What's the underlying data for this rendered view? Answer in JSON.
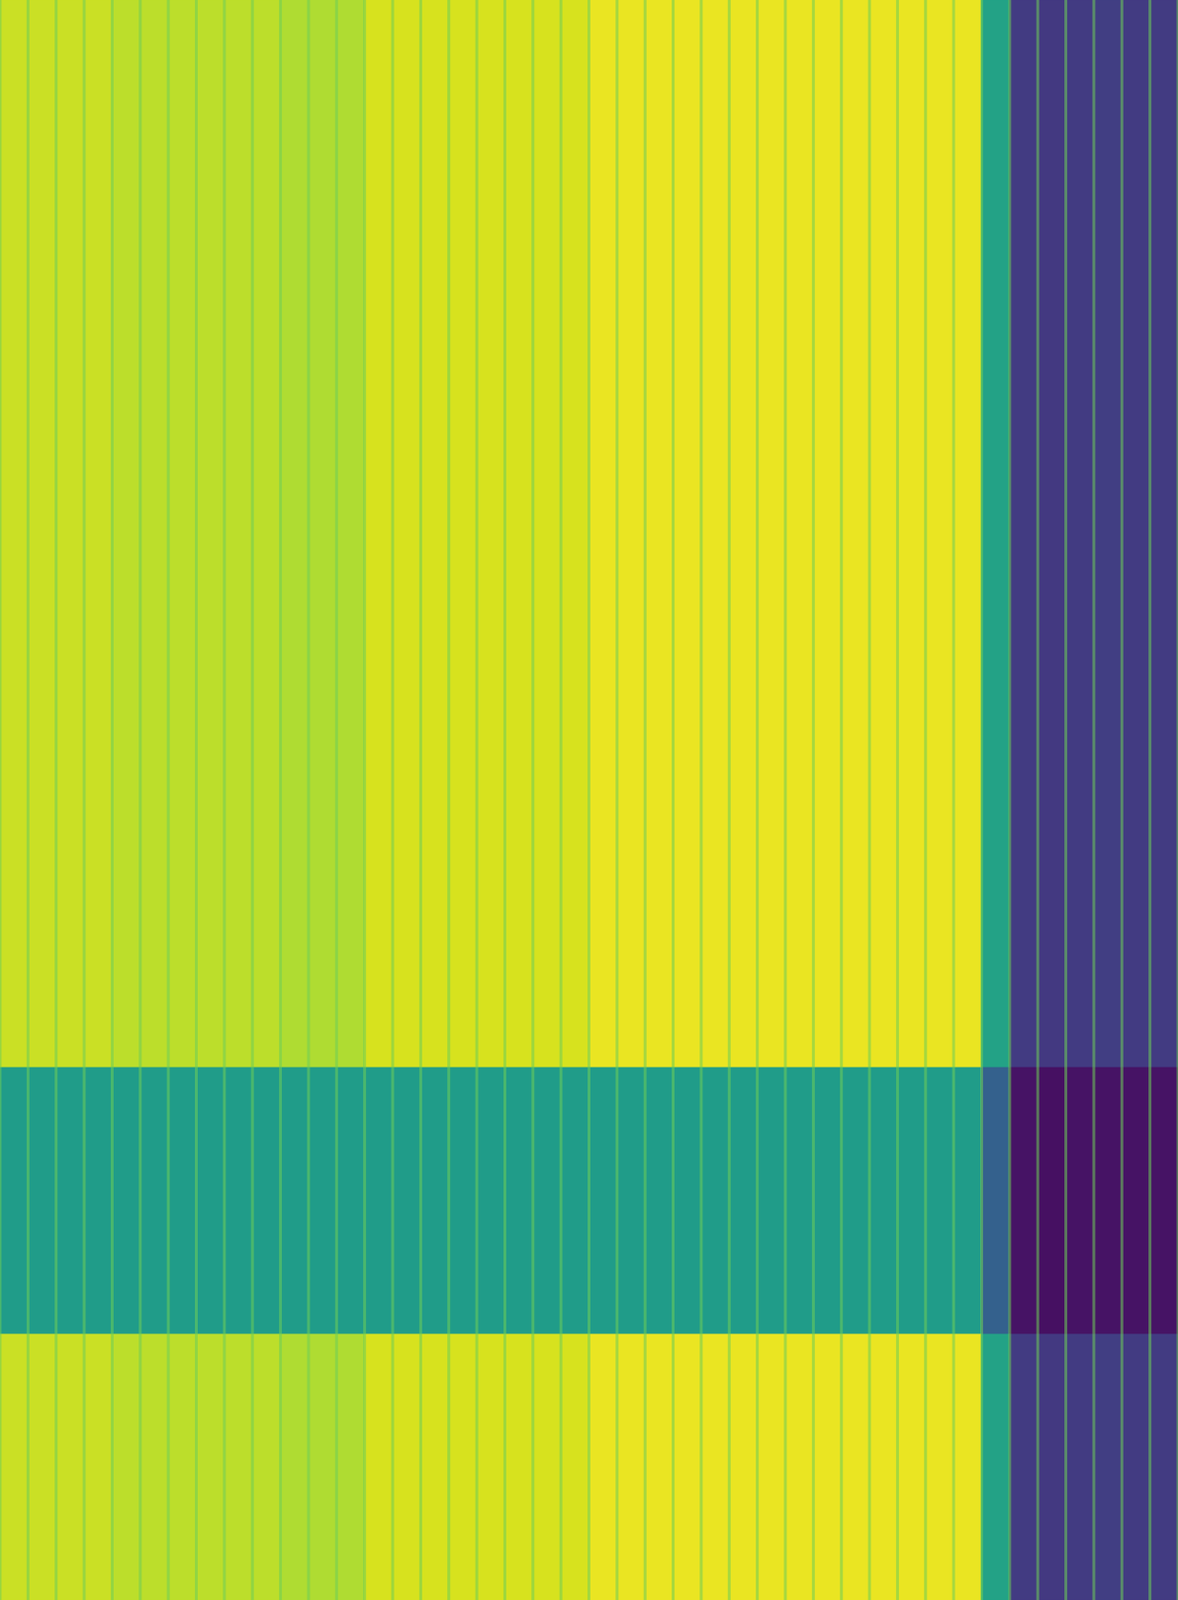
{
  "chart_data": {
    "type": "heatmap",
    "x_edges": [
      0,
      1,
      2,
      3,
      4,
      5,
      6,
      7,
      8,
      9,
      10,
      11,
      12,
      13,
      14,
      15,
      16,
      17,
      18,
      19,
      20,
      21,
      22,
      23,
      24,
      25,
      26,
      27,
      28,
      29,
      30,
      31,
      32,
      33,
      34,
      35,
      36,
      37,
      38,
      39,
      40,
      41,
      42
    ],
    "y_edges": [
      0,
      10,
      20,
      60
    ],
    "xlim": [
      0,
      42
    ],
    "ylim": [
      0,
      60
    ],
    "xticks": [
      0,
      1,
      2,
      3,
      4,
      5,
      6,
      7,
      8,
      9,
      10,
      11,
      12,
      13,
      14,
      15,
      16,
      17,
      18,
      19,
      20,
      21,
      22,
      23,
      24,
      25,
      26,
      27,
      28,
      29,
      30,
      31,
      32,
      33,
      34,
      35,
      36,
      37,
      38,
      39,
      40,
      41,
      42
    ],
    "yticks": [
      0,
      10,
      20,
      60
    ],
    "tick_labels": false,
    "grid": true,
    "color_range": [
      0,
      1
    ],
    "cells": [
      [
        0.95,
        0.95,
        0.95,
        0.95,
        0.94,
        0.94,
        0.94,
        0.94,
        0.94,
        0.94,
        0.93,
        0.93,
        0.93,
        0.96,
        0.96,
        0.96,
        0.96,
        0.96,
        0.96,
        0.96,
        0.96,
        0.98,
        0.98,
        0.98,
        0.98,
        0.98,
        0.98,
        0.98,
        0.98,
        0.98,
        0.98,
        0.98,
        0.98,
        0.98,
        0.98,
        0.65,
        0.2,
        0.19,
        0.2,
        0.21,
        0.2,
        0.2
      ],
      [
        0.62,
        0.62,
        0.62,
        0.62,
        0.62,
        0.62,
        0.62,
        0.62,
        0.62,
        0.62,
        0.62,
        0.62,
        0.62,
        0.62,
        0.62,
        0.62,
        0.62,
        0.62,
        0.62,
        0.62,
        0.62,
        0.62,
        0.62,
        0.62,
        0.62,
        0.62,
        0.62,
        0.62,
        0.62,
        0.62,
        0.62,
        0.62,
        0.62,
        0.62,
        0.62,
        0.35,
        0.06,
        0.05,
        0.06,
        0.06,
        0.06,
        0.06
      ],
      [
        0.95,
        0.95,
        0.95,
        0.95,
        0.94,
        0.94,
        0.94,
        0.94,
        0.94,
        0.94,
        0.93,
        0.93,
        0.93,
        0.96,
        0.96,
        0.96,
        0.96,
        0.96,
        0.96,
        0.96,
        0.96,
        0.98,
        0.98,
        0.98,
        0.98,
        0.98,
        0.98,
        0.98,
        0.98,
        0.98,
        0.98,
        0.98,
        0.98,
        0.98,
        0.98,
        0.65,
        0.2,
        0.19,
        0.2,
        0.21,
        0.2,
        0.2
      ]
    ]
  }
}
